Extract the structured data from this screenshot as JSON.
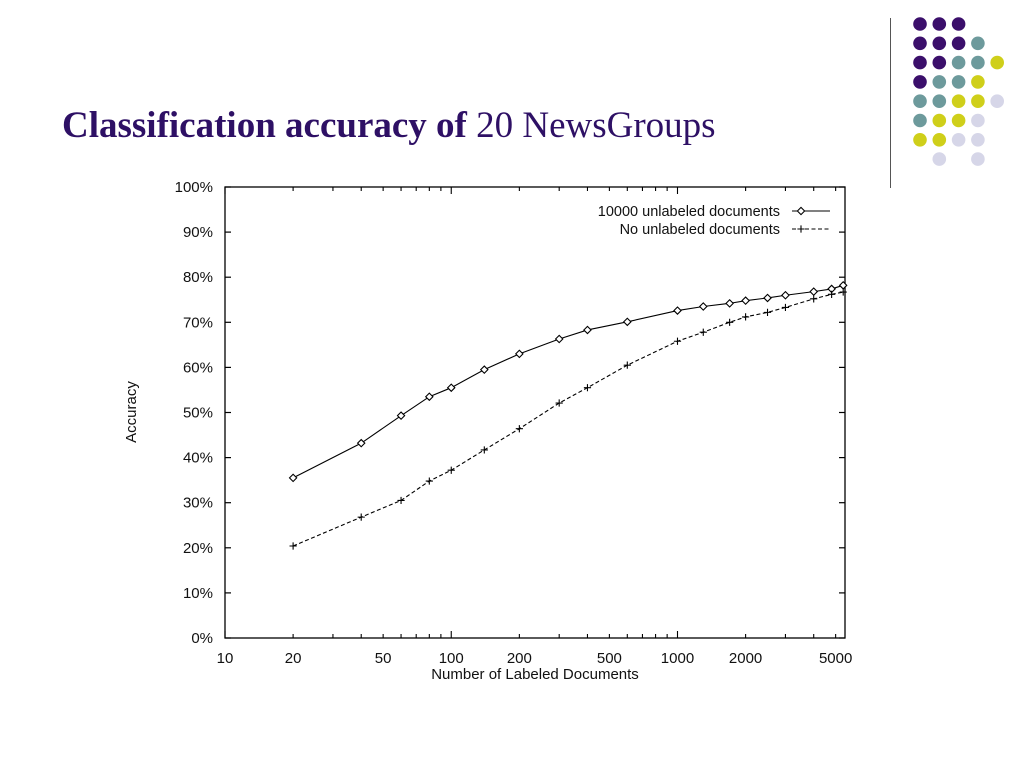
{
  "slide": {
    "title_bold": "Classification accuracy of",
    "title_rest": " 20 NewsGroups"
  },
  "colors": {
    "title": "#2e1065",
    "dot_purple": "#3b0f6b",
    "dot_teal": "#6d9a9c",
    "dot_yellow": "#cfcf1a",
    "dot_lavender": "#d6d6e8"
  },
  "decor_dots": [
    [
      "purple",
      "purple",
      "purple",
      ""
    ],
    [
      "purple",
      "purple",
      "purple",
      "teal"
    ],
    [
      "purple",
      "purple",
      "teal",
      "teal",
      "yellow"
    ],
    [
      "purple",
      "teal",
      "teal",
      "yellow"
    ],
    [
      "teal",
      "teal",
      "yellow",
      "yellow",
      "lavender"
    ],
    [
      "teal",
      "yellow",
      "yellow",
      "lavender"
    ],
    [
      "yellow",
      "yellow",
      "lavender",
      "lavender"
    ],
    [
      "",
      "lavender",
      "",
      "lavender"
    ]
  ],
  "chart_data": {
    "type": "line",
    "xlabel": "Number of Labeled Documents",
    "ylabel": "Accuracy",
    "xscale": "log",
    "xlim": [
      10,
      5500
    ],
    "ylim": [
      0,
      100
    ],
    "xticks": [
      {
        "value": 10,
        "label": "10"
      },
      {
        "value": 20,
        "label": "20"
      },
      {
        "value": 50,
        "label": "50"
      },
      {
        "value": 100,
        "label": "100"
      },
      {
        "value": 200,
        "label": "200"
      },
      {
        "value": 500,
        "label": "500"
      },
      {
        "value": 1000,
        "label": "1000"
      },
      {
        "value": 2000,
        "label": "2000"
      },
      {
        "value": 5000,
        "label": "5000"
      }
    ],
    "yticks": [
      {
        "value": 0,
        "label": "0%"
      },
      {
        "value": 10,
        "label": "10%"
      },
      {
        "value": 20,
        "label": "20%"
      },
      {
        "value": 30,
        "label": "30%"
      },
      {
        "value": 40,
        "label": "40%"
      },
      {
        "value": 50,
        "label": "50%"
      },
      {
        "value": 60,
        "label": "60%"
      },
      {
        "value": 70,
        "label": "70%"
      },
      {
        "value": 80,
        "label": "80%"
      },
      {
        "value": 90,
        "label": "90%"
      },
      {
        "value": 100,
        "label": "100%"
      }
    ],
    "legend_position": "top-right",
    "grid": false,
    "series": [
      {
        "name": "10000 unlabeled documents",
        "marker": "diamond",
        "line": "solid",
        "x": [
          20,
          40,
          60,
          80,
          100,
          140,
          200,
          300,
          400,
          600,
          1000,
          1300,
          1700,
          2000,
          2500,
          3000,
          4000,
          4800,
          5400
        ],
        "y": [
          35.5,
          43.2,
          49.3,
          53.5,
          55.5,
          59.5,
          63,
          66.3,
          68.3,
          70.1,
          72.6,
          73.5,
          74.2,
          74.8,
          75.4,
          76,
          76.8,
          77.4,
          78.2
        ]
      },
      {
        "name": "No unlabeled documents",
        "marker": "plus",
        "line": "dashed",
        "x": [
          20,
          40,
          60,
          80,
          100,
          140,
          200,
          300,
          400,
          600,
          1000,
          1300,
          1700,
          2000,
          2500,
          3000,
          4000,
          4800,
          5400
        ],
        "y": [
          20.4,
          26.8,
          30.5,
          34.8,
          37.2,
          41.7,
          46.4,
          52.1,
          55.5,
          60.5,
          65.8,
          67.8,
          70,
          71.2,
          72.2,
          73.3,
          75.2,
          76.2,
          76.7
        ]
      }
    ]
  }
}
